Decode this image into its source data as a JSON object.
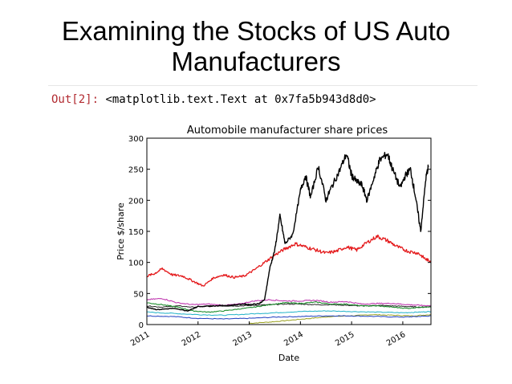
{
  "slide": {
    "title_line1": "Examining the Stocks of US Auto",
    "title_line2": "Manufacturers"
  },
  "notebook": {
    "out_prompt": "Out[2]:",
    "out_text": "<matplotlib.text.Text at 0x7fa5b943d8d0>"
  },
  "chart_data": {
    "type": "line",
    "title": "Automobile manufacturer share prices",
    "xlabel": "Date",
    "ylabel": "Price $/share",
    "xlim": [
      2011.0,
      2016.55
    ],
    "ylim": [
      0,
      300
    ],
    "yticks": [
      0,
      50,
      100,
      150,
      200,
      250,
      300
    ],
    "xticks": [
      2011,
      2012,
      2013,
      2014,
      2015,
      2016
    ],
    "xtick_labels": [
      "2011",
      "2012",
      "2013",
      "2014",
      "2015",
      "2016"
    ],
    "series": [
      {
        "name": "black-high",
        "color": "#000000",
        "width": 1.4,
        "x": [
          2011.0,
          2011.2,
          2011.5,
          2011.8,
          2012.0,
          2012.3,
          2012.6,
          2012.9,
          2013.0,
          2013.2,
          2013.3,
          2013.4,
          2013.5,
          2013.6,
          2013.7,
          2013.85,
          2014.0,
          2014.1,
          2014.2,
          2014.35,
          2014.5,
          2014.6,
          2014.75,
          2014.9,
          2015.0,
          2015.1,
          2015.2,
          2015.3,
          2015.45,
          2015.55,
          2015.7,
          2015.8,
          2015.95,
          2016.05,
          2016.15,
          2016.25,
          2016.35,
          2016.45,
          2016.5
        ],
        "y": [
          28,
          24,
          26,
          22,
          29,
          30,
          31,
          33,
          32,
          34,
          40,
          90,
          120,
          175,
          130,
          145,
          215,
          240,
          205,
          255,
          200,
          220,
          245,
          275,
          240,
          230,
          225,
          200,
          240,
          265,
          275,
          250,
          220,
          240,
          250,
          205,
          150,
          235,
          255
        ]
      },
      {
        "name": "red",
        "color": "#e41a1c",
        "width": 1.3,
        "x": [
          2011.0,
          2011.15,
          2011.3,
          2011.5,
          2011.7,
          2011.9,
          2012.1,
          2012.3,
          2012.5,
          2012.7,
          2012.9,
          2013.1,
          2013.3,
          2013.5,
          2013.7,
          2013.9,
          2014.1,
          2014.3,
          2014.5,
          2014.7,
          2014.9,
          2015.1,
          2015.3,
          2015.5,
          2015.7,
          2015.9,
          2016.1,
          2016.3,
          2016.45,
          2016.55
        ],
        "y": [
          78,
          82,
          90,
          80,
          78,
          70,
          62,
          75,
          80,
          76,
          78,
          88,
          100,
          112,
          122,
          130,
          125,
          120,
          115,
          118,
          125,
          120,
          132,
          142,
          135,
          125,
          118,
          115,
          105,
          102
        ]
      },
      {
        "name": "magenta",
        "color": "#c03ab0",
        "width": 1.1,
        "x": [
          2011.0,
          2011.3,
          2011.6,
          2011.9,
          2012.2,
          2012.5,
          2012.8,
          2013.1,
          2013.4,
          2013.7,
          2014.0,
          2014.3,
          2014.6,
          2014.9,
          2015.2,
          2015.5,
          2015.8,
          2016.1,
          2016.35,
          2016.55
        ],
        "y": [
          40,
          42,
          35,
          32,
          33,
          31,
          33,
          38,
          40,
          38,
          38,
          39,
          36,
          37,
          33,
          34,
          34,
          32,
          31,
          30
        ]
      },
      {
        "name": "green",
        "color": "#1f8f2f",
        "width": 1.1,
        "x": [
          2011.0,
          2011.3,
          2011.6,
          2011.9,
          2012.2,
          2012.5,
          2012.8,
          2013.1,
          2013.4,
          2013.7,
          2014.0,
          2014.3,
          2014.6,
          2014.9,
          2015.2,
          2015.5,
          2015.8,
          2016.1,
          2016.35,
          2016.55
        ],
        "y": [
          35,
          32,
          28,
          22,
          20,
          22,
          25,
          28,
          32,
          35,
          34,
          36,
          33,
          33,
          30,
          30,
          28,
          26,
          28,
          28
        ]
      },
      {
        "name": "black-low",
        "color": "#222222",
        "width": 1.0,
        "x": [
          2011.0,
          2011.3,
          2011.6,
          2011.9,
          2012.2,
          2012.5,
          2012.8,
          2013.1,
          2013.4,
          2013.7,
          2014.0,
          2014.3,
          2014.6,
          2014.9,
          2015.2,
          2015.5,
          2015.8,
          2016.1,
          2016.35,
          2016.55
        ],
        "y": [
          30,
          28,
          30,
          28,
          30,
          30,
          30,
          31,
          32,
          33,
          33,
          32,
          32,
          31,
          30,
          31,
          30,
          29,
          28,
          29
        ]
      },
      {
        "name": "cyan",
        "color": "#20b2c8",
        "width": 1.0,
        "x": [
          2011.0,
          2011.5,
          2012.0,
          2012.5,
          2013.0,
          2013.5,
          2014.0,
          2014.5,
          2015.0,
          2015.5,
          2016.0,
          2016.3,
          2016.55
        ],
        "y": [
          20,
          18,
          16,
          15,
          17,
          19,
          21,
          22,
          21,
          20,
          19,
          20,
          21
        ]
      },
      {
        "name": "blue",
        "color": "#2040c0",
        "width": 1.0,
        "x": [
          2011.0,
          2011.5,
          2012.0,
          2012.5,
          2013.0,
          2013.5,
          2014.0,
          2014.5,
          2015.0,
          2015.5,
          2016.0,
          2016.3,
          2016.55
        ],
        "y": [
          14,
          13,
          10,
          9,
          10,
          12,
          13,
          14,
          14,
          13,
          12,
          13,
          14
        ]
      },
      {
        "name": "olive",
        "color": "#9aa020",
        "width": 1.0,
        "x": [
          2013.0,
          2013.4,
          2013.8,
          2014.2,
          2014.6,
          2015.0,
          2015.4,
          2015.8,
          2016.2,
          2016.55
        ],
        "y": [
          2,
          4,
          7,
          10,
          13,
          14,
          16,
          15,
          14,
          16
        ]
      }
    ]
  }
}
